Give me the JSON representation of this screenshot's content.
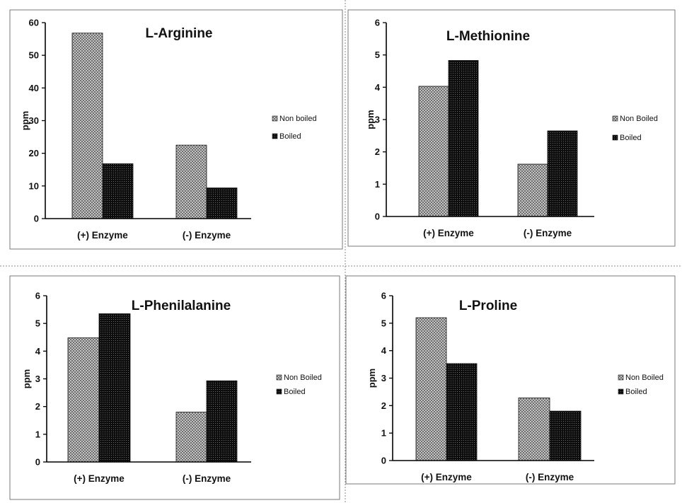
{
  "chart_data": [
    {
      "type": "bar",
      "title": "L-Arginine",
      "categories": [
        "(+) Enzyme",
        "(-) Enzyme"
      ],
      "ylabel": "ppm",
      "ylim": [
        0,
        60
      ],
      "yticks": [
        0,
        10,
        20,
        30,
        40,
        50,
        60
      ],
      "series": [
        {
          "name": "Non boiled",
          "values": [
            56.8,
            22.5
          ],
          "pattern": "crosshatch"
        },
        {
          "name": "Boiled",
          "values": [
            16.8,
            9.4
          ],
          "pattern": "dark-dots"
        }
      ],
      "legend": "right",
      "grid": false
    },
    {
      "type": "bar",
      "title": "L-Methionine",
      "categories": [
        "(+) Enzyme",
        "(-) Enzyme"
      ],
      "ylabel": "ppm",
      "ylim": [
        0,
        6
      ],
      "yticks": [
        0,
        1,
        2,
        3,
        4,
        5,
        6
      ],
      "series": [
        {
          "name": "Non Boiled",
          "values": [
            4.03,
            1.62
          ],
          "pattern": "crosshatch"
        },
        {
          "name": "Boiled",
          "values": [
            4.83,
            2.65
          ],
          "pattern": "dark-dots"
        }
      ],
      "legend": "right",
      "grid": false
    },
    {
      "type": "bar",
      "title": "L-Phenilalanine",
      "categories": [
        "(+) Enzyme",
        "(-) Enzyme"
      ],
      "ylabel": "ppm",
      "ylim": [
        0,
        6
      ],
      "yticks": [
        0,
        1,
        2,
        3,
        4,
        5,
        6
      ],
      "series": [
        {
          "name": "Non Boiled",
          "values": [
            4.48,
            1.8
          ],
          "pattern": "crosshatch"
        },
        {
          "name": "Boiled",
          "values": [
            5.35,
            2.93
          ],
          "pattern": "dark-dots"
        }
      ],
      "legend": "right",
      "grid": false
    },
    {
      "type": "bar",
      "title": "L-Proline",
      "categories": [
        "(+) Enzyme",
        "(-) Enzyme"
      ],
      "ylabel": "ppm",
      "ylim": [
        0,
        6
      ],
      "yticks": [
        0,
        1,
        2,
        3,
        4,
        5,
        6
      ],
      "series": [
        {
          "name": "Non Boiled",
          "values": [
            5.2,
            2.28
          ],
          "pattern": "crosshatch"
        },
        {
          "name": "Boiled",
          "values": [
            3.53,
            1.8
          ],
          "pattern": "dark-dots"
        }
      ],
      "legend": "right",
      "grid": false
    }
  ]
}
